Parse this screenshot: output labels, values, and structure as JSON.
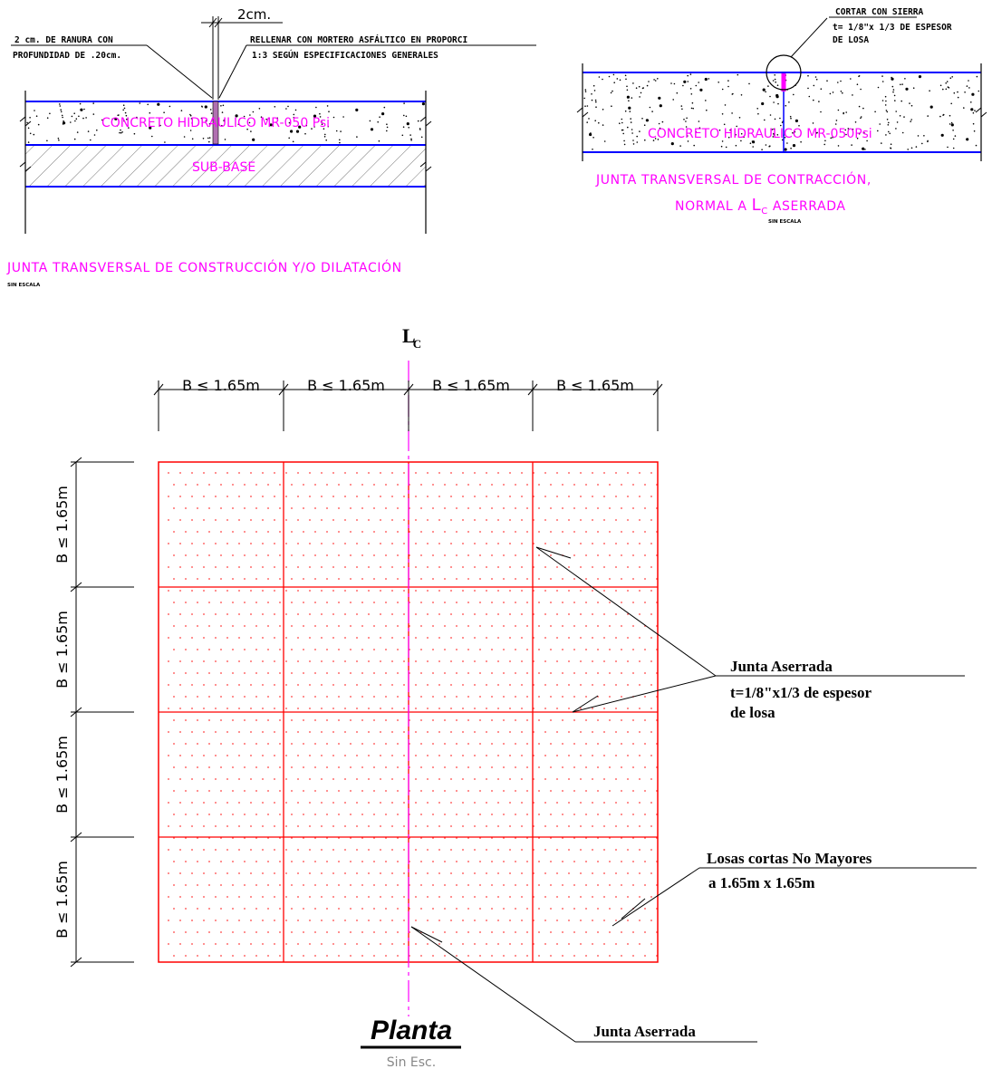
{
  "colors": {
    "magenta": "#ff00ff",
    "blue": "#0000ff",
    "red": "#ff0000",
    "black": "#000000",
    "gray": "#888888"
  },
  "detail_left": {
    "dim_label": "2cm.",
    "note_left_line1": "2 cm. DE RANURA CON",
    "note_left_line2": "PROFUNDIDAD DE .20cm.",
    "note_right_line1": "RELLENAR CON MORTERO ASFÁLTICO EN PROPORCI",
    "note_right_line2": "1:3 SEGÚN ESPECIFICACIONES GENERALES",
    "concrete_label": "CONCRETO HIDRAULICO   MR-050 Psi",
    "subbase_label": "SUB-BASE",
    "title": "JUNTA TRANSVERSAL DE CONSTRUCCIÓN Y/O DILATACIÓN",
    "scale": "SIN ESCALA"
  },
  "detail_right": {
    "note_line1": "CORTAR CON SIERRA",
    "note_line2": "t= 1/8\"x 1/3 DE ESPESOR",
    "note_line3": "DE LOSA",
    "concrete_label": "CONCRETO HIDRAULICO   MR-050Psi",
    "title_line1": "JUNTA TRANSVERSAL DE CONTRACCIÓN,",
    "title_line2": "NORMAL A ",
    "title_line2_cl": "L",
    "title_line2_cl_sub": "C",
    "title_line2_end": " ASERRADA",
    "scale": "SIN ESCALA"
  },
  "plan": {
    "centerline_main": "L",
    "centerline_sub": "C",
    "top_dims": [
      "B ≤ 1.65m",
      "B ≤ 1.65m",
      "B ≤ 1.65m",
      "B ≤ 1.65m"
    ],
    "left_dims": [
      "B ≤ 1.65m",
      "B ≤ 1.65m",
      "B ≤ 1.65m",
      "B ≤ 1.65m"
    ],
    "callout1_line1": "Junta Aserrada",
    "callout1_line2": "t=1/8\"x1/3 de espesor",
    "callout1_line3": "de losa",
    "callout2_line1": "Losas cortas No Mayores",
    "callout2_line2": "a 1.65m x 1.65m",
    "callout3": "Junta Aserrada",
    "title": "Planta",
    "subtitle": "Sin Esc."
  }
}
